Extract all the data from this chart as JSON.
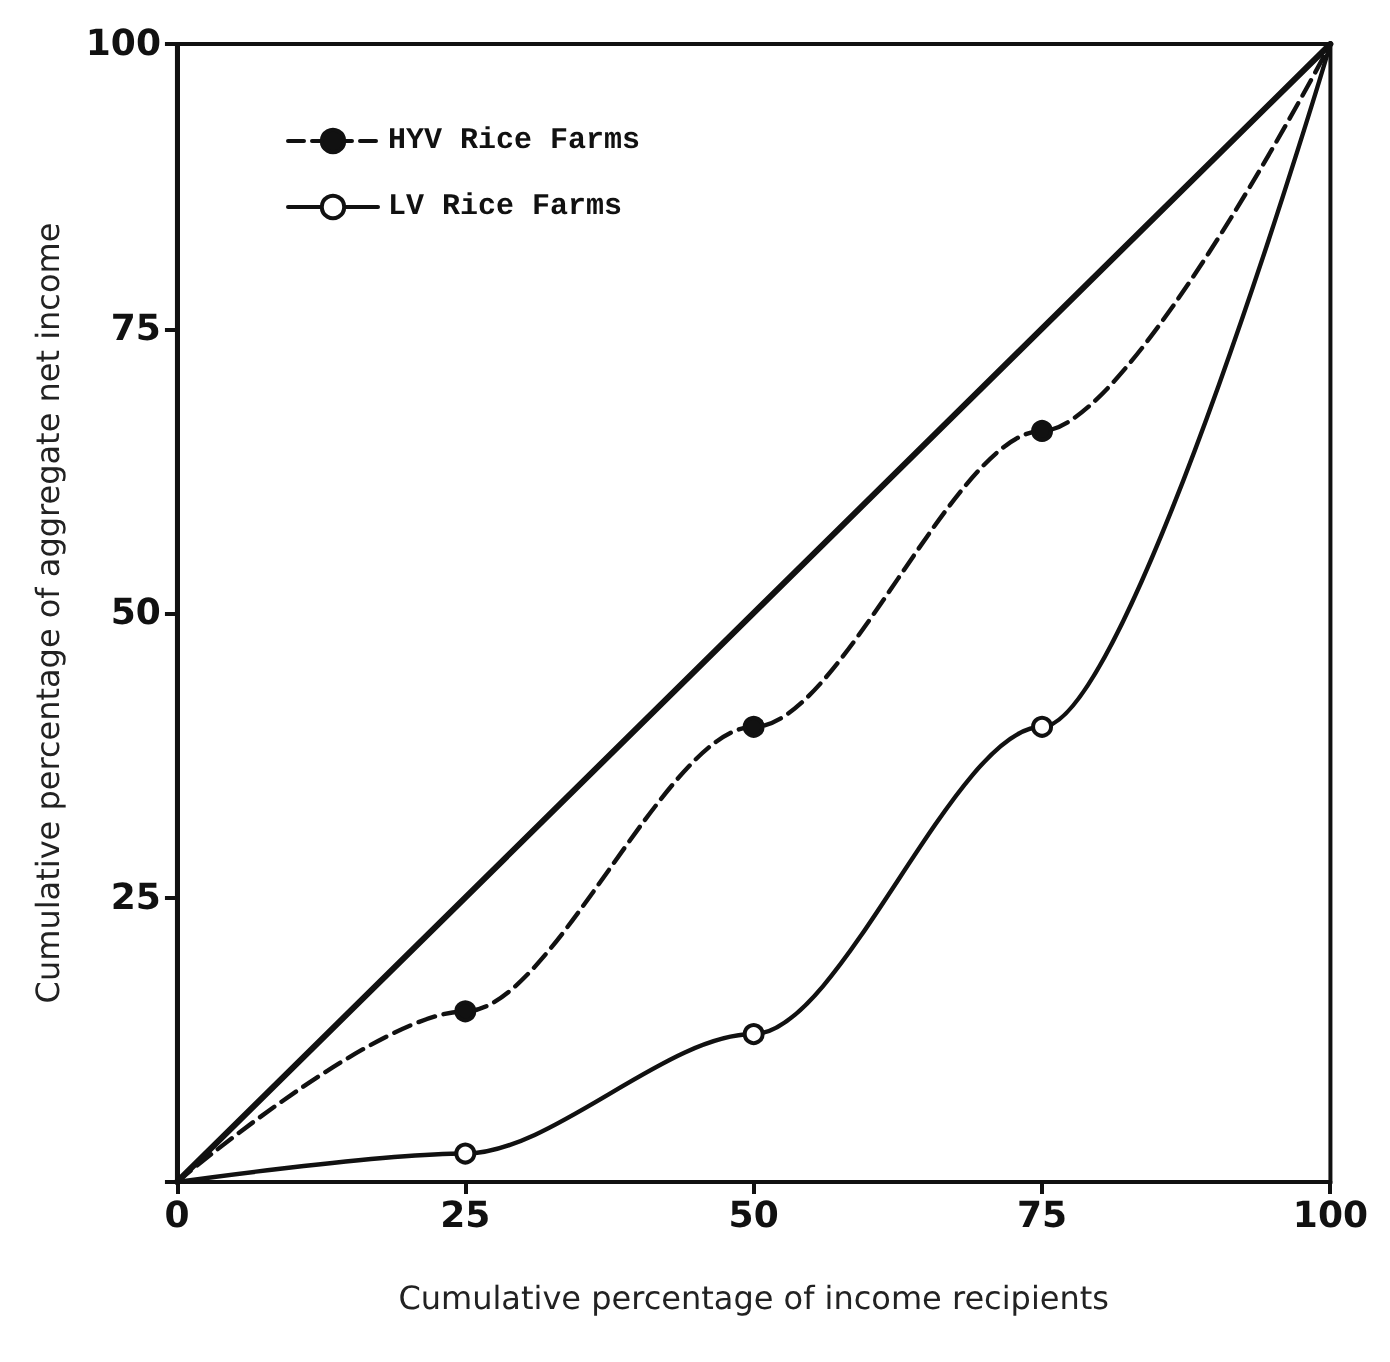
{
  "chart_data": {
    "type": "line",
    "xlabel": "Cumulative percentage of income recipients",
    "ylabel": "Cumulative percentage of aggregate net income",
    "xlim": [
      0,
      100
    ],
    "xticks": [
      0,
      25,
      50,
      75,
      100
    ],
    "ylim": [
      0,
      100
    ],
    "yticks": [
      {
        "value": 0,
        "label": null
      },
      25,
      50,
      75,
      100
    ],
    "series": [
      {
        "name": "HYV Rice Farms",
        "color": "#111111",
        "x": [
          0,
          25,
          50,
          75,
          100
        ],
        "values": [
          0,
          15,
          40,
          66,
          100
        ],
        "line_style": "dashed",
        "marker": "circle"
      },
      {
        "name": "LV Rice Farms",
        "color": "#111111",
        "x": [
          0,
          25,
          50,
          75,
          100
        ],
        "values": [
          0,
          2.5,
          13,
          40,
          100
        ],
        "line_style": "solid",
        "marker": "circle"
      },
      {
        "color": "#111111",
        "x": [
          0,
          100
        ],
        "values": [
          0,
          100
        ],
        "line_style": "solid",
        "marker": "none"
      }
    ],
    "grid": false,
    "legend": "top left"
  }
}
